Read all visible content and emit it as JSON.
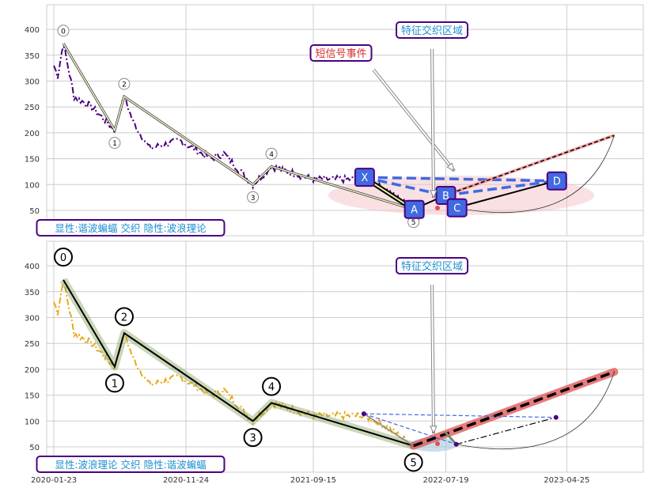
{
  "chart_data": [
    {
      "type": "line",
      "panel": "top",
      "ylim": [
        0,
        445
      ],
      "yticks": [
        50,
        100,
        150,
        200,
        250,
        300,
        350,
        400
      ],
      "xticks": [
        "2020-01-23",
        "2020-11-24",
        "2021-09-15",
        "2022-07-19",
        "2023-04-25"
      ],
      "grid": true,
      "price_color": "#4b0082",
      "price_anchors": [
        [
          "2020-01-23",
          330
        ],
        [
          "2020-02-01",
          310
        ],
        [
          "2020-02-14",
          373
        ],
        [
          "2020-03-10",
          270
        ],
        [
          "2020-04-20",
          250
        ],
        [
          "2020-06-12",
          205
        ],
        [
          "2020-07-04",
          270
        ],
        [
          "2020-07-25",
          220
        ],
        [
          "2020-09-01",
          170
        ],
        [
          "2020-11-10",
          185
        ],
        [
          "2021-01-20",
          150
        ],
        [
          "2021-02-20",
          160
        ],
        [
          "2021-04-28",
          100
        ],
        [
          "2021-06-10",
          135
        ],
        [
          "2021-09-15",
          110
        ],
        [
          "2022-01-10",
          110
        ],
        [
          "2022-03-01",
          90
        ],
        [
          "2022-05-05",
          52
        ]
      ],
      "wave_points": [
        {
          "label": "0",
          "date": "2020-02-14",
          "value": 373
        },
        {
          "label": "1",
          "date": "2020-06-12",
          "value": 205
        },
        {
          "label": "2",
          "date": "2020-07-04",
          "value": 270
        },
        {
          "label": "3",
          "date": "2021-04-28",
          "value": 100
        },
        {
          "label": "4",
          "date": "2021-06-10",
          "value": 135
        },
        {
          "label": "5",
          "date": "2022-05-05",
          "value": 52
        }
      ],
      "harmonic_points": [
        {
          "label": "X",
          "date": "2022-01-10",
          "value": 114
        },
        {
          "label": "A",
          "date": "2022-05-05",
          "value": 52
        },
        {
          "label": "B",
          "date": "2022-07-17",
          "value": 79
        },
        {
          "label": "C",
          "date": "2022-08-12",
          "value": 55
        },
        {
          "label": "D",
          "date": "2023-03-31",
          "value": 107
        }
      ],
      "target": {
        "date": "2023-08-13",
        "value": 195
      },
      "annotations": {
        "short_signal": "短信号事件",
        "feature_zone": "特征交织区域",
        "legend_box": "显性:谐波蝙蝠 交织 隐性:波浪理论"
      }
    },
    {
      "type": "line",
      "panel": "bottom",
      "ylim": [
        0,
        445
      ],
      "yticks": [
        50,
        100,
        150,
        200,
        250,
        300,
        350,
        400
      ],
      "xticks": [
        "2020-01-23",
        "2020-11-24",
        "2021-09-15",
        "2022-07-19",
        "2023-04-25"
      ],
      "grid": true,
      "price_color": "#e8a91c",
      "target": {
        "date": "2023-08-13",
        "value": 195
      },
      "annotations": {
        "feature_zone": "特征交织区域",
        "legend_box": "显性:波浪理论 交织 隐性:谐波蝙蝠"
      }
    }
  ],
  "colors": {
    "accent": "#4169e1",
    "box_border": "#4b0082",
    "zone_text": "#1f8fd0",
    "signal_text": "#d03030"
  }
}
